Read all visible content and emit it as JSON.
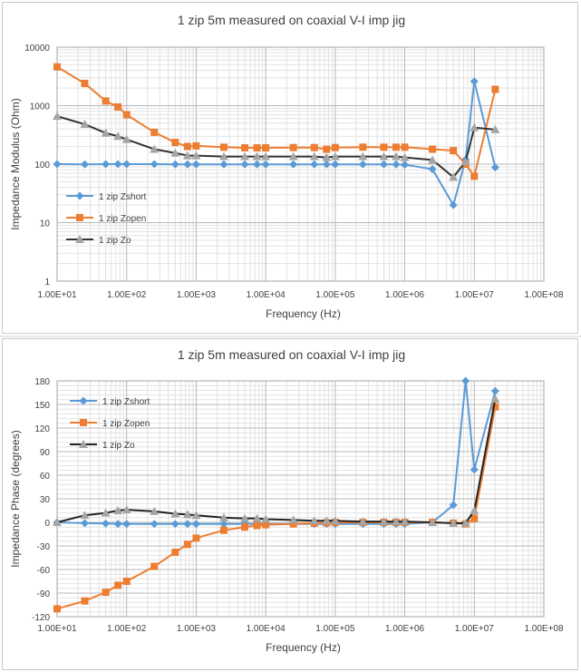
{
  "chart_data": [
    {
      "type": "line",
      "title": "1 zip 5m measured on coaxial V-I imp jig",
      "xlabel": "Frequency (Hz)",
      "ylabel": "Impedance Modulus (Ohm)",
      "xscale": "log",
      "yscale": "log",
      "xlim": [
        10,
        100000000
      ],
      "ylim": [
        1,
        10000
      ],
      "x_ticks": [
        "1.00E+01",
        "1.00E+02",
        "1.00E+03",
        "1.00E+04",
        "1.00E+05",
        "1.00E+06",
        "1.00E+07",
        "1.00E+08"
      ],
      "y_ticks": [
        "1",
        "10",
        "100",
        "1000",
        "10000"
      ],
      "grid": "major and minor",
      "legend_position": "inside-left",
      "x": [
        10,
        25,
        50,
        75,
        100,
        250,
        500,
        750,
        1000,
        2500,
        5000,
        7500,
        10000,
        25000,
        50000,
        75000,
        100000,
        250000,
        500000,
        750000,
        1000000,
        2500000,
        5000000,
        7500000,
        10000000,
        20000000
      ],
      "series": [
        {
          "name": "1 zip Zshort",
          "color": "#5b9bd5",
          "marker": "diamond",
          "values": [
            100,
            99,
            100,
            100,
            100,
            100,
            99,
            99,
            99,
            99,
            99,
            99,
            99,
            99,
            99,
            99,
            99,
            99,
            99,
            99,
            98,
            82,
            20,
            120,
            2600,
            88
          ]
        },
        {
          "name": "1 zip Zopen",
          "color": "#ed7d31",
          "marker": "square",
          "values": [
            4600,
            2400,
            1200,
            950,
            700,
            350,
            235,
            200,
            205,
            195,
            190,
            190,
            190,
            192,
            192,
            180,
            192,
            195,
            195,
            195,
            195,
            180,
            170,
            100,
            62,
            1900
          ]
        },
        {
          "name": "1 zip Zo",
          "color": "#333333",
          "marker": "triangle",
          "values": [
            660,
            480,
            340,
            300,
            265,
            180,
            155,
            140,
            140,
            135,
            135,
            135,
            135,
            135,
            135,
            130,
            135,
            135,
            135,
            135,
            130,
            118,
            60,
            110,
            420,
            390
          ]
        }
      ]
    },
    {
      "type": "line",
      "title": "1 zip 5m measured on coaxial V-I imp jig",
      "xlabel": "Frequency (Hz)",
      "ylabel": "Impedance Phase (degrees)",
      "xscale": "log",
      "xlim": [
        10,
        100000000
      ],
      "ylim": [
        -120,
        180
      ],
      "x_ticks": [
        "1.00E+01",
        "1.00E+02",
        "1.00E+03",
        "1.00E+04",
        "1.00E+05",
        "1.00E+06",
        "1.00E+07",
        "1.00E+08"
      ],
      "y_ticks": [
        "-120",
        "-90",
        "-60",
        "-30",
        "0",
        "30",
        "60",
        "90",
        "120",
        "150",
        "180"
      ],
      "grid": "major and minor",
      "legend_position": "top-left",
      "x": [
        10,
        25,
        50,
        75,
        100,
        250,
        500,
        750,
        1000,
        2500,
        5000,
        7500,
        10000,
        25000,
        50000,
        75000,
        100000,
        250000,
        500000,
        750000,
        1000000,
        2500000,
        5000000,
        7500000,
        10000000,
        20000000
      ],
      "series": [
        {
          "name": "1 zip Zshort",
          "color": "#5b9bd5",
          "marker": "diamond",
          "values": [
            0,
            -1,
            -1.5,
            -2,
            -2,
            -2,
            -2,
            -2,
            -2,
            -2,
            -2,
            -2,
            -2,
            -2,
            -2,
            -2,
            -2,
            -2,
            -2,
            -2,
            -2,
            0,
            22,
            180,
            67,
            167
          ]
        },
        {
          "name": "1 zip Zopen",
          "color": "#ed7d31",
          "marker": "square",
          "values": [
            -110,
            -100,
            -89,
            -80,
            -75,
            -56,
            -38,
            -28,
            -20,
            -10,
            -6,
            -4,
            -3,
            -2,
            -1,
            -0.5,
            0,
            0,
            0,
            0,
            0,
            0,
            -1,
            -2,
            5,
            147
          ]
        },
        {
          "name": "1 zip Zo",
          "color": "#222222",
          "marker": "triangle",
          "values": [
            0,
            9,
            12,
            15,
            16,
            14,
            11,
            10,
            9,
            6,
            5,
            5,
            4,
            3,
            2,
            2,
            2,
            1,
            1,
            1,
            1,
            0,
            -1,
            -1,
            15,
            157
          ]
        }
      ]
    }
  ]
}
